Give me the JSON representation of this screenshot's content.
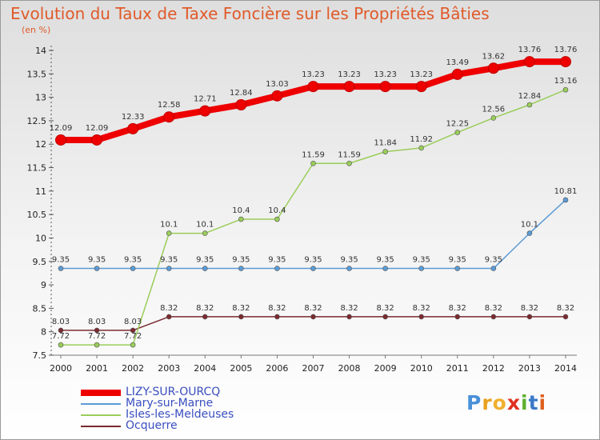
{
  "title": "Evolution du Taux de Taxe Foncière sur les Propriétés Bâties",
  "unit": "(en %)",
  "logo": "Proxiti",
  "chart_data": {
    "type": "line",
    "title": "Evolution du Taux de Taxe Foncière sur les Propriétés Bâties",
    "ylabel": "(en %)",
    "xlabel": "",
    "x": [
      "2000",
      "2001",
      "2002",
      "2003",
      "2004",
      "2005",
      "2006",
      "2007",
      "2008",
      "2009",
      "2010",
      "2011",
      "2012",
      "2013",
      "2014"
    ],
    "ylim": [
      7.5,
      14
    ],
    "yticks": [
      "7.5",
      "8",
      "8.5",
      "9",
      "9.5",
      "10",
      "10.5",
      "11",
      "11.5",
      "12",
      "12.5",
      "13",
      "13.5",
      "14"
    ],
    "grid": false,
    "legend_position": "bottom-left",
    "series": [
      {
        "name": "LIZY-SUR-OURCQ",
        "color": "#ee0000",
        "values": [
          12.09,
          12.09,
          12.33,
          12.58,
          12.71,
          12.84,
          13.03,
          13.23,
          13.23,
          13.23,
          13.23,
          13.49,
          13.62,
          13.76,
          13.76
        ],
        "labels": [
          "12.09",
          "12.09",
          "12.33",
          "12.58",
          "12.71",
          "12.84",
          "13.03",
          "13.23",
          "13.23",
          "13.23",
          "13.23",
          "13.49",
          "13.62",
          "13.76",
          "13.76"
        ]
      },
      {
        "name": "Mary-sur-Marne",
        "color": "#5b9bd5",
        "values": [
          9.35,
          9.35,
          9.35,
          9.35,
          9.35,
          9.35,
          9.35,
          9.35,
          9.35,
          9.35,
          9.35,
          9.35,
          9.35,
          10.1,
          10.81
        ],
        "labels": [
          "9.35",
          "9.35",
          "9.35",
          "9.35",
          "9.35",
          "9.35",
          "9.35",
          "9.35",
          "9.35",
          "9.35",
          "9.35",
          "9.35",
          "9.35",
          "10.1",
          "10.81"
        ]
      },
      {
        "name": "Isles-les-Meldeuses",
        "color": "#9acd5a",
        "values": [
          7.72,
          7.72,
          7.72,
          10.1,
          10.1,
          10.4,
          10.4,
          11.59,
          11.59,
          11.84,
          11.92,
          12.25,
          12.56,
          12.84,
          13.16
        ],
        "labels": [
          "7.72",
          "7.72",
          "7.72",
          "10.1",
          "10.1",
          "10.4",
          "10.4",
          "11.59",
          "11.59",
          "11.84",
          "11.92",
          "12.25",
          "12.56",
          "12.84",
          "13.16"
        ]
      },
      {
        "name": "Ocquerre",
        "color": "#7a2a30",
        "values": [
          8.03,
          8.03,
          8.03,
          8.32,
          8.32,
          8.32,
          8.32,
          8.32,
          8.32,
          8.32,
          8.32,
          8.32,
          8.32,
          8.32,
          8.32
        ],
        "labels": [
          "8.03",
          "8.03",
          "8.03",
          "8.32",
          "8.32",
          "8.32",
          "8.32",
          "8.32",
          "8.32",
          "8.32",
          "8.32",
          "8.32",
          "8.32",
          "8.32",
          "8.32"
        ]
      }
    ]
  }
}
